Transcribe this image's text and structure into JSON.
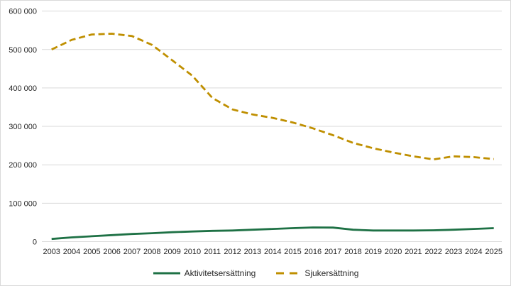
{
  "chart_data": {
    "type": "line",
    "x": [
      2003,
      2004,
      2005,
      2006,
      2007,
      2008,
      2009,
      2010,
      2011,
      2012,
      2013,
      2014,
      2015,
      2016,
      2017,
      2018,
      2019,
      2020,
      2021,
      2022,
      2023,
      2024,
      2025
    ],
    "series": [
      {
        "name": "Aktivitetsersättning",
        "color": "#1E7145",
        "style": "solid",
        "values": [
          7000,
          11000,
          14000,
          17000,
          20000,
          22000,
          24500,
          26500,
          28000,
          29000,
          31000,
          33000,
          35000,
          37000,
          36500,
          31000,
          29000,
          29000,
          29000,
          29500,
          31000,
          33000,
          35000
        ]
      },
      {
        "name": "Sjukersättning",
        "color": "#BF8F00",
        "style": "dashed",
        "values": [
          500000,
          525000,
          539000,
          541000,
          535000,
          512000,
          472000,
          432000,
          374000,
          344000,
          331000,
          322000,
          310000,
          295000,
          277000,
          257000,
          243000,
          232000,
          222000,
          214000,
          222000,
          220000,
          215000
        ]
      }
    ],
    "title": "",
    "xlabel": "",
    "ylabel": "",
    "ylim": [
      0,
      600000
    ],
    "y_tick_step": 100000,
    "y_tick_labels": [
      "0",
      "100 000",
      "200 000",
      "300 000",
      "400 000",
      "500 000",
      "600 000"
    ],
    "grid": "horizontal",
    "gridline_color": "#d9d9d9",
    "legend_position": "bottom"
  }
}
